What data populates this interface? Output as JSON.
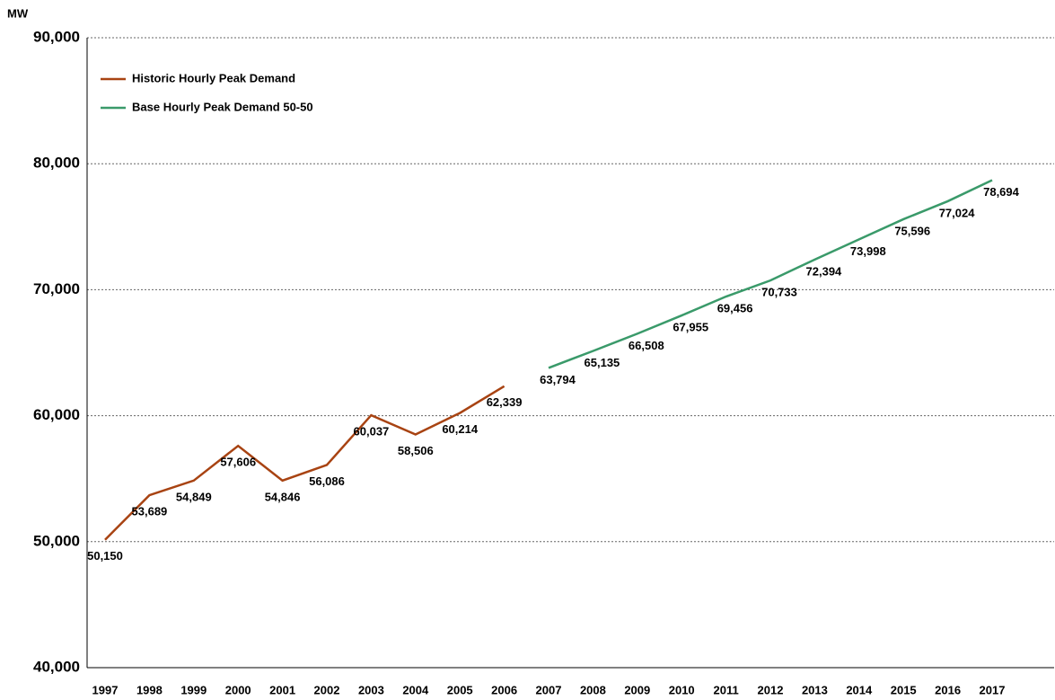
{
  "chart_data": {
    "type": "line",
    "y_label": "MW",
    "categories": [
      "1997",
      "1998",
      "1999",
      "2000",
      "2001",
      "2002",
      "2003",
      "2004",
      "2005",
      "2006",
      "2007",
      "2008",
      "2009",
      "2010",
      "2011",
      "2012",
      "2013",
      "2014",
      "2015",
      "2016",
      "2017"
    ],
    "series": [
      {
        "name": "Historic Hourly Peak Demand",
        "color": "#a84312",
        "values": [
          50150,
          53689,
          54849,
          57606,
          54846,
          56086,
          60037,
          58506,
          60214,
          62339,
          null,
          null,
          null,
          null,
          null,
          null,
          null,
          null,
          null,
          null,
          null
        ],
        "value_labels": [
          "50,150",
          "53,689",
          "54,849",
          "57,606",
          "54,846",
          "56,086",
          "60,037",
          "58,506",
          "60,214",
          "62,339",
          null,
          null,
          null,
          null,
          null,
          null,
          null,
          null,
          null,
          null,
          null
        ]
      },
      {
        "name": "Base Hourly Peak Demand 50-50",
        "color": "#3a9a6a",
        "values": [
          null,
          null,
          null,
          null,
          null,
          null,
          null,
          null,
          null,
          null,
          63794,
          65135,
          66508,
          67955,
          69456,
          70733,
          72394,
          73998,
          75596,
          77024,
          78694
        ],
        "value_labels": [
          null,
          null,
          null,
          null,
          null,
          null,
          null,
          null,
          null,
          null,
          "63,794",
          "65,135",
          "66,508",
          "67,955",
          "69,456",
          "70,733",
          "72,394",
          "73,998",
          "75,596",
          "77,024",
          "78,694"
        ]
      }
    ],
    "ylim": [
      40000,
      90000
    ],
    "yticks": [
      {
        "value": 40000,
        "label": "40,000"
      },
      {
        "value": 50000,
        "label": "50,000"
      },
      {
        "value": 60000,
        "label": "60,000"
      },
      {
        "value": 70000,
        "label": "70,000"
      },
      {
        "value": 80000,
        "label": "80,000"
      },
      {
        "value": 90000,
        "label": "90,000"
      }
    ],
    "grid": true,
    "legend": "top-left"
  }
}
